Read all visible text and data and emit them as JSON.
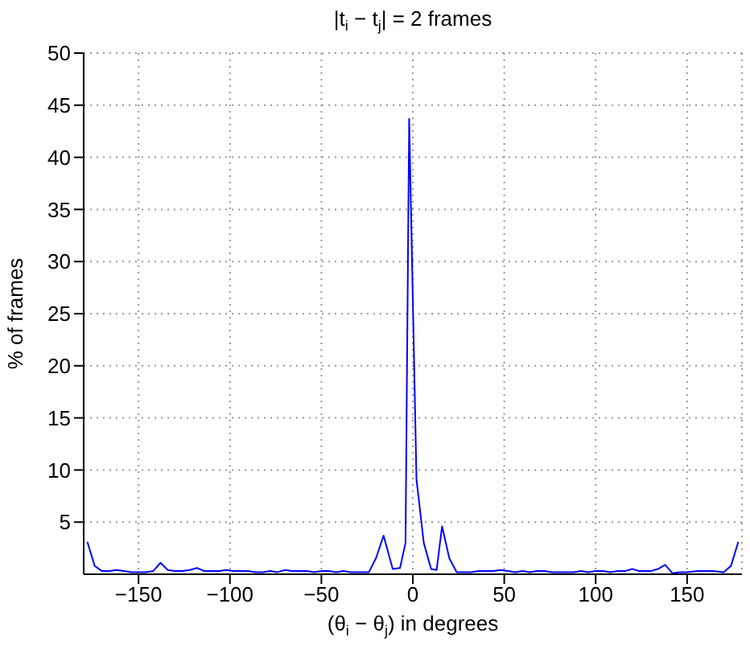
{
  "chart_data": {
    "type": "line",
    "title": "|t$_{i}$ − t$_{j}$| = 2 frames",
    "xlabel": "(θ$_{i}$ − θ$_{j}$) in degrees",
    "ylabel": "% of frames",
    "xlim": [
      -180,
      180
    ],
    "xticks": [
      -150,
      -100,
      -50,
      0,
      50,
      100,
      150
    ],
    "ylim": [
      0,
      50
    ],
    "yticks": [
      5,
      10,
      15,
      20,
      25,
      30,
      35,
      40,
      45,
      50
    ],
    "grid": true,
    "series": [
      {
        "color": "#0000ff",
        "x": [
          -178,
          -174,
          -170,
          -166,
          -162,
          -158,
          -154,
          -150,
          -146,
          -142,
          -138,
          -134,
          -130,
          -126,
          -122,
          -118,
          -114,
          -110,
          -106,
          -102,
          -98,
          -94,
          -90,
          -86,
          -82,
          -78,
          -74,
          -70,
          -66,
          -62,
          -58,
          -54,
          -50,
          -46,
          -42,
          -38,
          -34,
          -30,
          -26,
          -24,
          -20,
          -16,
          -11,
          -7,
          -4,
          -2,
          2,
          6,
          10,
          13,
          16,
          20,
          24,
          28,
          32,
          36,
          40,
          44,
          48,
          52,
          56,
          60,
          64,
          68,
          72,
          76,
          80,
          84,
          88,
          92,
          96,
          100,
          104,
          108,
          112,
          116,
          120,
          124,
          130,
          134,
          138,
          142,
          146,
          150,
          156,
          160,
          164,
          170,
          174,
          178
        ],
        "values": [
          3.1,
          0.8,
          0.3,
          0.3,
          0.4,
          0.3,
          0.2,
          0.2,
          0.2,
          0.3,
          1.1,
          0.4,
          0.3,
          0.3,
          0.4,
          0.6,
          0.3,
          0.3,
          0.3,
          0.4,
          0.3,
          0.3,
          0.3,
          0.2,
          0.2,
          0.3,
          0.2,
          0.4,
          0.3,
          0.3,
          0.3,
          0.2,
          0.3,
          0.3,
          0.2,
          0.3,
          0.2,
          0.2,
          0.2,
          0.2,
          1.6,
          3.7,
          0.5,
          0.6,
          3.0,
          43.7,
          9.1,
          3.0,
          0.5,
          0.4,
          4.6,
          1.5,
          0.2,
          0.2,
          0.2,
          0.3,
          0.3,
          0.3,
          0.4,
          0.3,
          0.2,
          0.3,
          0.2,
          0.3,
          0.3,
          0.2,
          0.2,
          0.2,
          0.2,
          0.3,
          0.2,
          0.3,
          0.3,
          0.2,
          0.3,
          0.3,
          0.5,
          0.3,
          0.3,
          0.5,
          0.9,
          0.1,
          0.2,
          0.2,
          0.3,
          0.3,
          0.3,
          0.2,
          0.8,
          3.1
        ]
      }
    ]
  }
}
